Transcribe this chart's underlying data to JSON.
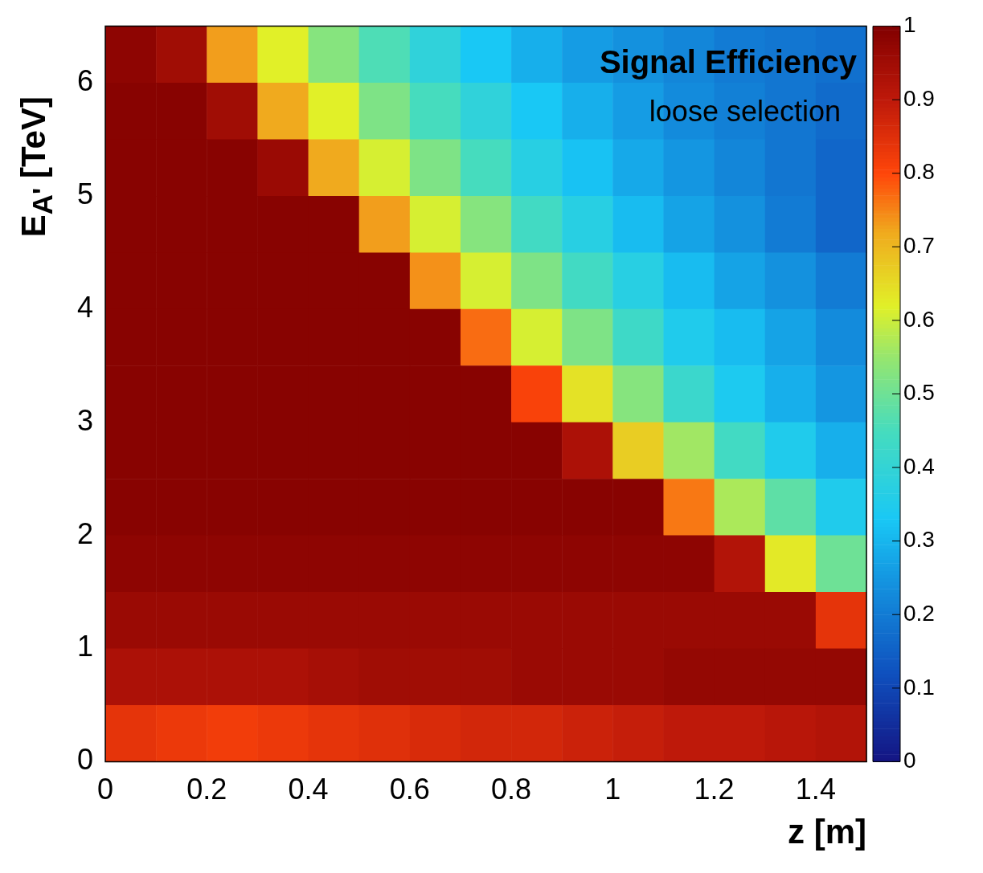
{
  "chart_data": {
    "type": "heatmap",
    "title": "Signal Efficiency",
    "subtitle": "loose selection",
    "xlabel": "z [m]",
    "ylabel": "E$_{A'}$ [TeV]",
    "xlim": [
      0,
      1.5
    ],
    "xticks": [
      0,
      0.2,
      0.4,
      0.6,
      0.8,
      1,
      1.2,
      1.4
    ],
    "ylim": [
      0,
      6.5
    ],
    "yticks": [
      0,
      1,
      2,
      3,
      4,
      5,
      6
    ],
    "clim": [
      0,
      1
    ],
    "cticks": [
      0,
      0.1,
      0.2,
      0.3,
      0.4,
      0.5,
      0.6,
      0.7,
      0.8,
      0.9,
      1
    ],
    "grid": false,
    "cells": [
      [
        0.98,
        0.95,
        0.73,
        0.62,
        0.53,
        0.46,
        0.39,
        0.33,
        0.29,
        0.26,
        0.24,
        0.22,
        0.2,
        0.19,
        0.18
      ],
      [
        0.99,
        0.99,
        0.95,
        0.72,
        0.62,
        0.52,
        0.45,
        0.39,
        0.33,
        0.29,
        0.26,
        0.23,
        0.21,
        0.19,
        0.17
      ],
      [
        0.99,
        0.99,
        0.99,
        0.96,
        0.72,
        0.61,
        0.52,
        0.45,
        0.37,
        0.32,
        0.28,
        0.25,
        0.22,
        0.19,
        0.16
      ],
      [
        0.99,
        0.99,
        0.99,
        0.99,
        0.99,
        0.73,
        0.61,
        0.53,
        0.44,
        0.37,
        0.31,
        0.27,
        0.24,
        0.2,
        0.16
      ],
      [
        0.99,
        0.99,
        0.99,
        0.99,
        0.99,
        0.99,
        0.74,
        0.61,
        0.52,
        0.44,
        0.37,
        0.31,
        0.27,
        0.24,
        0.2
      ],
      [
        0.99,
        0.99,
        0.99,
        0.99,
        0.99,
        0.99,
        0.99,
        0.77,
        0.61,
        0.52,
        0.43,
        0.35,
        0.31,
        0.27,
        0.23
      ],
      [
        0.99,
        0.99,
        0.99,
        0.99,
        0.99,
        0.99,
        0.99,
        0.99,
        0.81,
        0.64,
        0.53,
        0.42,
        0.34,
        0.29,
        0.25
      ],
      [
        0.99,
        0.99,
        0.99,
        0.99,
        0.99,
        0.99,
        0.99,
        0.99,
        0.99,
        0.93,
        0.67,
        0.56,
        0.44,
        0.35,
        0.29
      ],
      [
        0.99,
        0.99,
        0.99,
        0.99,
        0.99,
        0.99,
        0.99,
        0.99,
        0.99,
        0.99,
        0.99,
        0.76,
        0.57,
        0.48,
        0.35
      ],
      [
        0.98,
        0.98,
        0.98,
        0.98,
        0.98,
        0.98,
        0.98,
        0.98,
        0.98,
        0.98,
        0.98,
        0.98,
        0.92,
        0.63,
        0.5
      ],
      [
        0.96,
        0.96,
        0.96,
        0.96,
        0.96,
        0.96,
        0.96,
        0.96,
        0.96,
        0.96,
        0.96,
        0.96,
        0.96,
        0.96,
        0.84
      ],
      [
        0.93,
        0.93,
        0.93,
        0.93,
        0.94,
        0.95,
        0.95,
        0.95,
        0.96,
        0.96,
        0.96,
        0.97,
        0.97,
        0.97,
        0.97
      ],
      [
        0.84,
        0.83,
        0.82,
        0.83,
        0.84,
        0.85,
        0.86,
        0.87,
        0.87,
        0.88,
        0.89,
        0.9,
        0.9,
        0.91,
        0.92
      ]
    ]
  }
}
